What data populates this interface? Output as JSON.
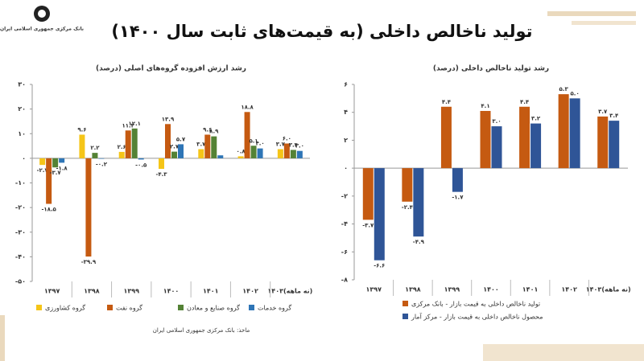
{
  "header": {
    "title": "تولید ناخالص داخلی (به قیمت‌های ثابت سال ۱۴۰۰)",
    "logo": "بانک مرکزی جمهوری اسلامی ایران"
  },
  "source": "ماخذ: بانک مرکزی جمهوری اسلامی ایران",
  "chart_data": [
    {
      "type": "bar",
      "title": "رشد ارزش افزوده گروه‌های اصلی (درصد)",
      "categories": [
        "۱۳۹۷",
        "۱۳۹۸",
        "۱۳۹۹",
        "۱۴۰۰",
        "۱۴۰۱",
        "۱۴۰۲",
        "۱۴۰۳(نه ماهه)"
      ],
      "series": [
        {
          "name": "گروه کشاورزی",
          "color": "#f5c518",
          "label_color": "#e0b000",
          "values": [
            -2.7,
            9.6,
            2.6,
            -4.3,
            3.7,
            0.8,
            3.7
          ],
          "value_labels": [
            "-۲.۷",
            "۹.۶",
            "۲.۶",
            "-۴.۳",
            "۳.۷",
            "۰.۸",
            "۳.۷"
          ]
        },
        {
          "name": "گروه نفت",
          "color": "#c55a11",
          "label_color": "#c0392b",
          "values": [
            -18.5,
            -39.9,
            11.3,
            13.9,
            9.6,
            18.8,
            6.0
          ],
          "value_labels": [
            "-۱۸.۵",
            "-۳۹.۹",
            "۱۱.۳",
            "۱۳.۹",
            "۹.۶",
            "۱۸.۸",
            "۶.۰"
          ]
        },
        {
          "name": "گروه صنایع و معادن",
          "color": "#548235",
          "label_color": "#548235",
          "values": [
            -3.7,
            2.2,
            12.1,
            2.7,
            8.9,
            5.1,
            3.4
          ],
          "value_labels": [
            "-۳.۷",
            "۲.۲",
            "۱۲.۱",
            "۲.۷",
            "۸.۹",
            "۵.۱",
            "۳.۴"
          ]
        },
        {
          "name": "گروه خدمات",
          "color": "#2e75b6",
          "label_color": "#1f3864",
          "values": [
            -1.8,
            -0.2,
            -0.5,
            5.7,
            1.2,
            4.0,
            3.0
          ],
          "value_labels": [
            "-۱.۸",
            "-۰.۲",
            "-۰.۵",
            "۵.۷",
            null,
            "۴.۰",
            "۳.۰"
          ]
        }
      ],
      "ylim": [
        -50,
        30
      ],
      "yticks": [
        {
          "value": 30,
          "label": "۳۰"
        },
        {
          "value": 20,
          "label": "۲۰"
        },
        {
          "value": 10,
          "label": "۱۰"
        },
        {
          "value": 0,
          "label": "۰"
        },
        {
          "value": -10,
          "label": "-۱۰"
        },
        {
          "value": -20,
          "label": "-۲۰"
        },
        {
          "value": -30,
          "label": "-۳۰"
        },
        {
          "value": -40,
          "label": "-۴۰"
        },
        {
          "value": -50,
          "label": "-۵۰"
        }
      ]
    },
    {
      "type": "bar",
      "title": "رشد تولید ناخالص داخلی (درصد)",
      "categories": [
        "۱۳۹۷",
        "۱۳۹۸",
        "۱۳۹۹",
        "۱۴۰۰",
        "۱۴۰۱",
        "۱۴۰۲",
        "۱۴۰۳(نه ماهه)"
      ],
      "series": [
        {
          "name": "تولید ناخالص داخلی به قیمت بازار - بانک مرکزی",
          "color": "#c55a11",
          "label_color": "#c0392b",
          "values": [
            -3.7,
            -2.4,
            4.4,
            4.1,
            4.4,
            5.3,
            3.7
          ],
          "value_labels": [
            "-۳.۷",
            "-۲.۴",
            "۴.۴",
            "۴.۱",
            "۴.۴",
            "۵.۳",
            "۳.۷"
          ]
        },
        {
          "name": "محصول ناخالص داخلی به قیمت بازار - مرکز آمار",
          "color": "#2f5597",
          "label_color": "#1f3864",
          "values": [
            -6.6,
            -4.9,
            -1.7,
            3.0,
            3.2,
            5.0,
            3.4
          ],
          "value_labels": [
            "-۶.۶",
            "-۴.۹",
            "-۱.۷",
            "۳.۰",
            "۳.۲",
            "۵.۰",
            "۳.۴"
          ]
        }
      ],
      "ylim": [
        -8,
        6
      ],
      "yticks": [
        {
          "value": 6,
          "label": "۶"
        },
        {
          "value": 4,
          "label": "۴"
        },
        {
          "value": 2,
          "label": "۲"
        },
        {
          "value": 0,
          "label": "۰"
        },
        {
          "value": -2,
          "label": "-۲"
        },
        {
          "value": -4,
          "label": "-۴"
        },
        {
          "value": -6,
          "label": "-۶"
        },
        {
          "value": -8,
          "label": "-۸"
        }
      ]
    }
  ]
}
